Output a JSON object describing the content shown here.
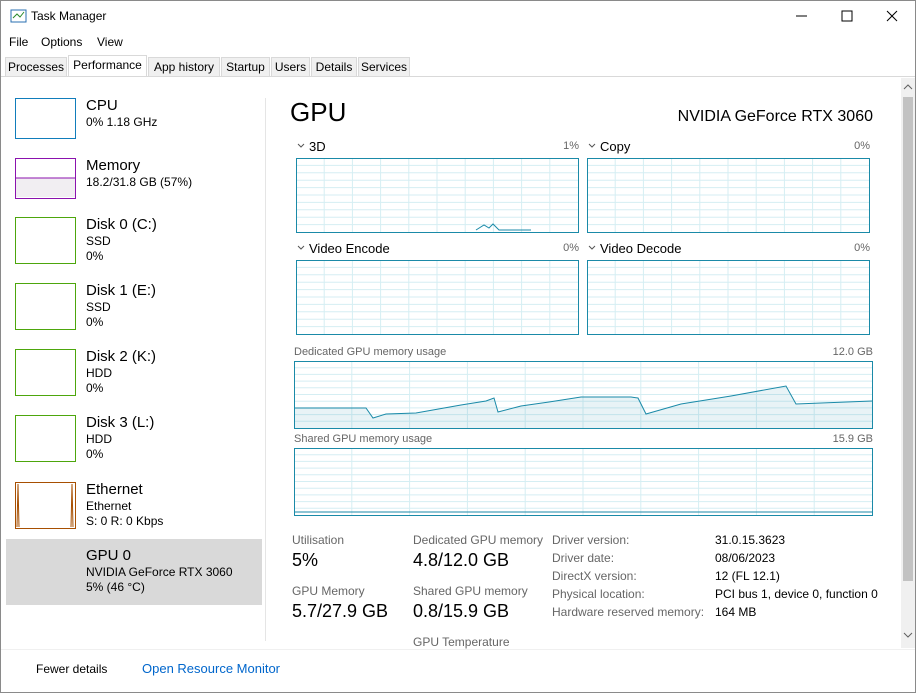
{
  "window": {
    "title": "Task Manager"
  },
  "menu": [
    "File",
    "Options",
    "View"
  ],
  "tabs": [
    "Processes",
    "Performance",
    "App history",
    "Startup",
    "Users",
    "Details",
    "Services"
  ],
  "sidebar": [
    {
      "name": "CPU",
      "lines": [
        "0% 1.18 GHz"
      ]
    },
    {
      "name": "Memory",
      "lines": [
        "18.2/31.8 GB (57%)"
      ]
    },
    {
      "name": "Disk 0 (C:)",
      "lines": [
        "SSD",
        "0%"
      ]
    },
    {
      "name": "Disk 1 (E:)",
      "lines": [
        "SSD",
        "0%"
      ]
    },
    {
      "name": "Disk 2 (K:)",
      "lines": [
        "HDD",
        "0%"
      ]
    },
    {
      "name": "Disk 3 (L:)",
      "lines": [
        "HDD",
        "0%"
      ]
    },
    {
      "name": "Ethernet",
      "lines": [
        "Ethernet",
        "S: 0 R: 0 Kbps"
      ]
    },
    {
      "name": "GPU 0",
      "lines": [
        "NVIDIA GeForce RTX 3060",
        "5% (46 °C)"
      ]
    }
  ],
  "main": {
    "title": "GPU",
    "device": "NVIDIA GeForce RTX 3060",
    "engines": [
      {
        "name": "3D",
        "value": "1%"
      },
      {
        "name": "Copy",
        "value": "0%"
      },
      {
        "name": "Video Encode",
        "value": "0%"
      },
      {
        "name": "Video Decode",
        "value": "0%"
      }
    ],
    "memory_graphs": [
      {
        "name": "Dedicated GPU memory usage",
        "max": "12.0 GB"
      },
      {
        "name": "Shared GPU memory usage",
        "max": "15.9 GB"
      }
    ],
    "stats": [
      {
        "label": "Utilisation",
        "value": "5%"
      },
      {
        "label": "Dedicated GPU memory",
        "value": "4.8/12.0 GB"
      },
      {
        "label": "GPU Memory",
        "value": "5.7/27.9 GB"
      },
      {
        "label": "Shared GPU memory",
        "value": "0.8/15.9 GB"
      },
      {
        "label": "GPU Temperature"
      }
    ],
    "details": [
      {
        "label": "Driver version:",
        "value": "31.0.15.3623"
      },
      {
        "label": "Driver date:",
        "value": "08/06/2023"
      },
      {
        "label": "DirectX version:",
        "value": "12 (FL 12.1)"
      },
      {
        "label": "Physical location:",
        "value": "PCI bus 1, device 0, function 0"
      },
      {
        "label": "Hardware reserved memory:",
        "value": "164 MB"
      }
    ]
  },
  "footer": {
    "fewer": "Fewer details",
    "monitor": "Open Resource Monitor"
  }
}
